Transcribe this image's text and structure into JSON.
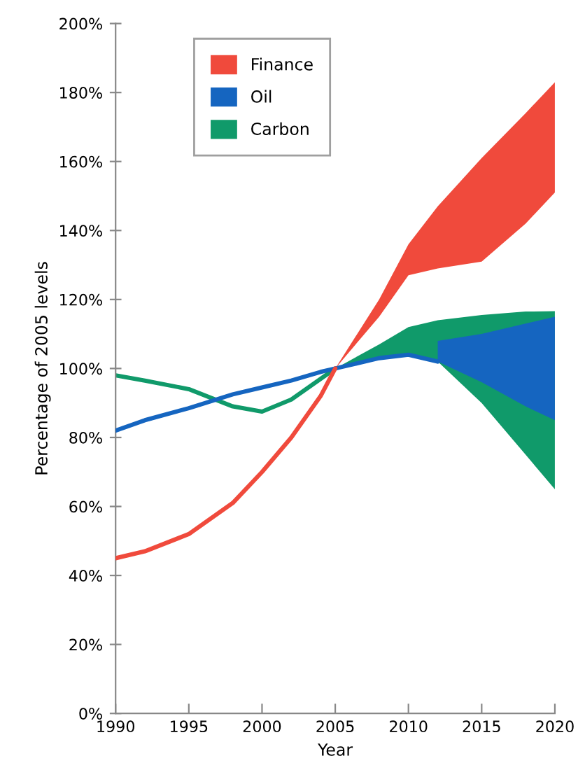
{
  "chart_data": {
    "type": "line",
    "xlabel": "Year",
    "ylabel": "Percentage of 2005 levels",
    "x": [
      1990,
      1992,
      1995,
      1998,
      2000,
      2002,
      2004,
      2005,
      2008,
      2010,
      2012,
      2015,
      2018,
      2020
    ],
    "xlim": [
      1990,
      2020
    ],
    "xticks": [
      1990,
      1995,
      2000,
      2005,
      2010,
      2015,
      2020
    ],
    "ylim": [
      0,
      200
    ],
    "yticks": [
      {
        "value": 0,
        "label": "0%"
      },
      {
        "value": 20,
        "label": "20%"
      },
      {
        "value": 40,
        "label": "40%"
      },
      {
        "value": 60,
        "label": "60%"
      },
      {
        "value": 80,
        "label": "80%"
      },
      {
        "value": 100,
        "label": "100%"
      },
      {
        "value": 120,
        "label": "120%"
      },
      {
        "value": 140,
        "label": "140%"
      },
      {
        "value": 160,
        "label": "160%"
      },
      {
        "value": 180,
        "label": "180%"
      },
      {
        "value": 200,
        "label": "200%"
      }
    ],
    "grid": false,
    "legend": "top left",
    "marker": "none",
    "line_style": "solid",
    "series": [
      {
        "name": "Finance",
        "color": "#f04a3c",
        "values": [
          45,
          47,
          52,
          61,
          70,
          80,
          92,
          100,
          null,
          null,
          null,
          null,
          null,
          null
        ],
        "lower": [
          null,
          null,
          null,
          null,
          null,
          null,
          null,
          100,
          115,
          127,
          129,
          131,
          142,
          151
        ],
        "upper": [
          null,
          null,
          null,
          null,
          null,
          null,
          null,
          100,
          120,
          136,
          147,
          161,
          174,
          183
        ]
      },
      {
        "name": "Oil",
        "color": "#1565c0",
        "values": [
          82,
          85,
          88.5,
          92.5,
          94.5,
          96.5,
          99,
          100,
          103,
          104,
          102,
          null,
          null,
          null
        ],
        "lower": [
          null,
          null,
          null,
          null,
          null,
          null,
          null,
          null,
          null,
          null,
          102,
          96,
          89,
          85
        ],
        "upper": [
          null,
          null,
          null,
          null,
          null,
          null,
          null,
          null,
          null,
          null,
          108,
          110,
          113,
          115
        ]
      },
      {
        "name": "Carbon",
        "color": "#109a6a",
        "values": [
          98,
          96.5,
          94,
          89,
          87.5,
          91,
          97,
          100,
          null,
          null,
          null,
          null,
          null,
          null
        ],
        "lower": [
          null,
          null,
          null,
          null,
          null,
          null,
          null,
          100,
          103,
          104,
          102,
          90,
          75,
          65
        ],
        "upper": [
          null,
          null,
          null,
          null,
          null,
          null,
          null,
          100,
          107,
          112,
          114,
          115.5,
          116.5,
          116.6
        ]
      }
    ]
  }
}
